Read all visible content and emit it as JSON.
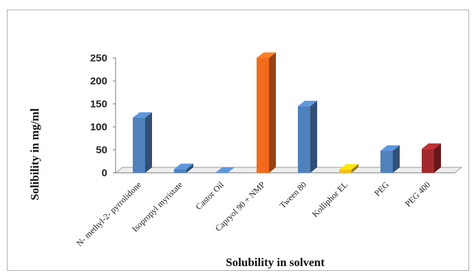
{
  "chart_data": {
    "type": "bar",
    "title": "",
    "xlabel": "Solubility in solvent",
    "ylabel": "Solibility in mg/ml",
    "ylim": [
      0,
      250
    ],
    "yticks": [
      0,
      50,
      100,
      150,
      200,
      250
    ],
    "grid": false,
    "legend": "none",
    "categories": [
      "N- methyl-2- pyrrolidone",
      "Isopropyl myristate",
      "Castor Oil",
      "Capryol 90 + NMP",
      "Tween 80",
      "Kolliphor EL",
      "PEG",
      "PEG 400"
    ],
    "values": [
      120,
      8,
      0,
      250,
      145,
      7,
      48,
      52
    ],
    "colors": [
      "#4f81bd",
      "#4f81bd",
      "#4f81bd",
      "#f26b1d",
      "#4f81bd",
      "#f5c20b",
      "#4f81bd",
      "#a3292c"
    ]
  }
}
